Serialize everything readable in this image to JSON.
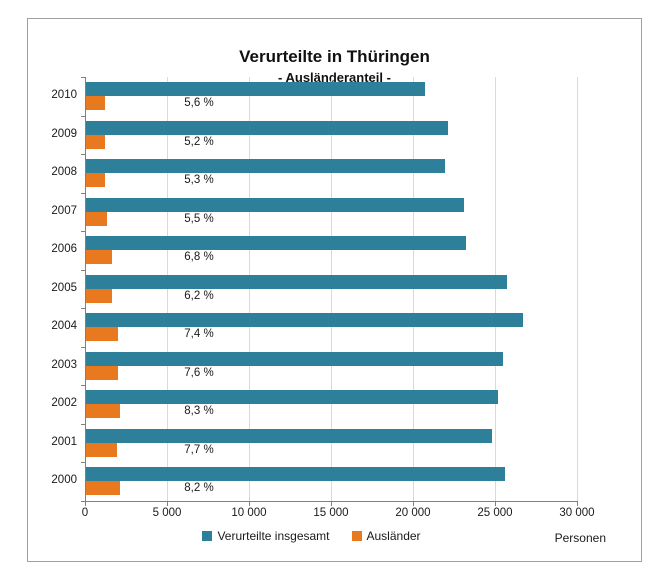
{
  "chart_data": {
    "type": "bar",
    "orientation": "horizontal",
    "title": "Verurteilte in Thüringen",
    "subtitle": "- Ausländeranteil -",
    "unit_label": "Personen",
    "categories": [
      "2010",
      "2009",
      "2008",
      "2007",
      "2006",
      "2005",
      "2004",
      "2003",
      "2002",
      "2001",
      "2000"
    ],
    "series": [
      {
        "name": "Verurteilte insgesamt",
        "color": "#2E7F99",
        "values": [
          20700,
          22100,
          21900,
          23050,
          23200,
          25700,
          26650,
          25400,
          25100,
          24750,
          25550
        ]
      },
      {
        "name": "Ausländer",
        "color": "#E8791E",
        "values": [
          1160,
          1150,
          1160,
          1270,
          1580,
          1590,
          1970,
          1930,
          2080,
          1910,
          2090
        ]
      }
    ],
    "bar_labels": [
      "5,6 %",
      "5,2 %",
      "5,3 %",
      "5,5 %",
      "6,8 %",
      "6,2 %",
      "7,4 %",
      "7,6 %",
      "8,3 %",
      "7,7 %",
      "8,2 %"
    ],
    "x_axis": {
      "tick_values": [
        0,
        5000,
        10000,
        15000,
        20000,
        25000,
        30000
      ],
      "tick_labels": [
        "0",
        "5 000",
        "10 000",
        "15 000",
        "20 000",
        "25 000",
        "30 000"
      ]
    },
    "xlim": [
      0,
      30000
    ],
    "xlabel": "Personen",
    "ylabel": "",
    "grid": true,
    "legend_position": "bottom",
    "colors": {
      "grid": "#D9D9D9",
      "axis": "#808080",
      "text": "#1A1A1A",
      "frame_border": "#A0A0A0",
      "background": "#FFFFFF"
    }
  }
}
